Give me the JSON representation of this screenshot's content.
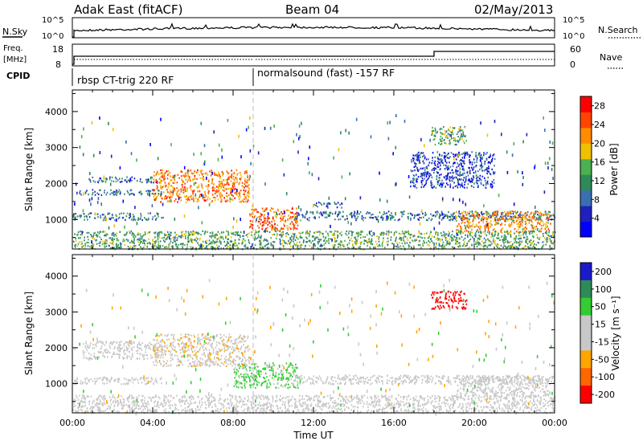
{
  "header": {
    "title": "Adak East (fitACF)",
    "beam": "Beam 04",
    "date": "02/May/2013"
  },
  "top_panels": {
    "nsky_label": "N.Sky",
    "nsky_ticks": [
      "10^5",
      "10^0"
    ],
    "nsearch_label": "N.Search",
    "nsearch_ticks": [
      "10^5",
      "10^0"
    ],
    "freq_label_line1": "Freq.",
    "freq_label_line2": "[MHz]",
    "freq_ticks": [
      "18",
      "8"
    ],
    "nave_label": "Nave",
    "nave_ticks": [
      "60",
      "0"
    ],
    "cpid_label": "CPID",
    "cpid_segments": [
      {
        "name": "rbsp CT-trig 220 RF",
        "start_hour": 0,
        "end_hour": 9
      },
      {
        "name": "normalsound (fast) -157 RF",
        "start_hour": 9,
        "end_hour": 24
      }
    ]
  },
  "colors": {
    "power_scale": [
      "#0000ff",
      "#2020c0",
      "#3a6fb0",
      "#2e8b57",
      "#4caf50",
      "#f0c000",
      "#ff8c00",
      "#ff4500",
      "#ff0000"
    ],
    "velocity_scale": [
      "#1a1acc",
      "#2e8b57",
      "#33cc33",
      "#c8c8c8",
      "#c8c8c8",
      "#ffa500",
      "#ff6600",
      "#ff0000"
    ]
  },
  "chart_data": [
    {
      "type": "heatmap",
      "quantity": "power",
      "ylabel": "Slant Range [km]",
      "xlabel": "Time UT",
      "x_ticks": [
        "00:00",
        "04:00",
        "08:00",
        "12:00",
        "16:00",
        "20:00",
        "00:00"
      ],
      "xlim_hours": [
        0,
        24
      ],
      "ylim": [
        180,
        4600
      ],
      "y_ticks": [
        1000,
        2000,
        3000,
        4000
      ],
      "colorbar_label": "Power [dB]",
      "colorbar_ticks": [
        4,
        8,
        12,
        16,
        20,
        24,
        28
      ],
      "colorbar_range": [
        0,
        30
      ],
      "features": [
        {
          "start_hour": 0.0,
          "end_hour": 4.5,
          "range_low": 1000,
          "range_high": 1200,
          "level": 0.35
        },
        {
          "start_hour": 0.2,
          "end_hour": 4.5,
          "range_low": 1700,
          "range_high": 1850,
          "level": 0.3
        },
        {
          "start_hour": 0.8,
          "end_hour": 4.0,
          "range_low": 2050,
          "range_high": 2200,
          "level": 0.3
        },
        {
          "start_hour": 4.0,
          "end_hour": 8.8,
          "range_low": 1500,
          "range_high": 2400,
          "level": 0.75
        },
        {
          "start_hour": 8.8,
          "end_hour": 11.2,
          "range_low": 700,
          "range_high": 1350,
          "level": 0.8
        },
        {
          "start_hour": 11.0,
          "end_hour": 24.0,
          "range_low": 1000,
          "range_high": 1250,
          "level": 0.3
        },
        {
          "start_hour": 12.0,
          "end_hour": 13.5,
          "range_low": 1350,
          "range_high": 1500,
          "level": 0.25
        },
        {
          "start_hour": 17.8,
          "end_hour": 19.6,
          "range_low": 3100,
          "range_high": 3600,
          "level": 0.45
        },
        {
          "start_hour": 19.0,
          "end_hour": 23.8,
          "range_low": 650,
          "range_high": 1250,
          "level": 0.7
        },
        {
          "start_hour": 16.8,
          "end_hour": 21.0,
          "range_low": 1900,
          "range_high": 2900,
          "level": 0.2
        },
        {
          "start_hour": 0.0,
          "end_hour": 24.0,
          "range_low": 190,
          "range_high": 700,
          "level": 0.45
        }
      ]
    },
    {
      "type": "heatmap",
      "quantity": "velocity",
      "ylabel": "Slant Range [km]",
      "xlabel": "Time UT",
      "x_ticks": [
        "00:00",
        "04:00",
        "08:00",
        "12:00",
        "16:00",
        "20:00",
        "00:00"
      ],
      "xlim_hours": [
        0,
        24
      ],
      "ylim": [
        180,
        4600
      ],
      "y_ticks": [
        1000,
        2000,
        3000,
        4000
      ],
      "colorbar_label": "Velocity [m s⁻¹]",
      "colorbar_ticks": [
        200,
        100,
        50,
        15,
        -15,
        -50,
        -100,
        -200
      ],
      "features": [
        {
          "start_hour": 0.0,
          "end_hour": 4.5,
          "range_low": 1000,
          "range_high": 1200,
          "velocity": 0
        },
        {
          "start_hour": 0.5,
          "end_hour": 4.5,
          "range_low": 1700,
          "range_high": 2200,
          "velocity": -10
        },
        {
          "start_hour": 4.0,
          "end_hour": 8.8,
          "range_low": 1500,
          "range_high": 2400,
          "velocity": -20
        },
        {
          "start_hour": 8.0,
          "end_hour": 11.2,
          "range_low": 900,
          "range_high": 1600,
          "velocity": 40
        },
        {
          "start_hour": 11.0,
          "end_hour": 24.0,
          "range_low": 1000,
          "range_high": 1250,
          "velocity": 0
        },
        {
          "start_hour": 17.8,
          "end_hour": 19.6,
          "range_low": 3100,
          "range_high": 3600,
          "velocity": -250
        },
        {
          "start_hour": 19.0,
          "end_hour": 23.8,
          "range_low": 650,
          "range_high": 1250,
          "velocity": 0
        },
        {
          "start_hour": 0.0,
          "end_hour": 24.0,
          "range_low": 190,
          "range_high": 700,
          "velocity": 0
        }
      ]
    }
  ]
}
